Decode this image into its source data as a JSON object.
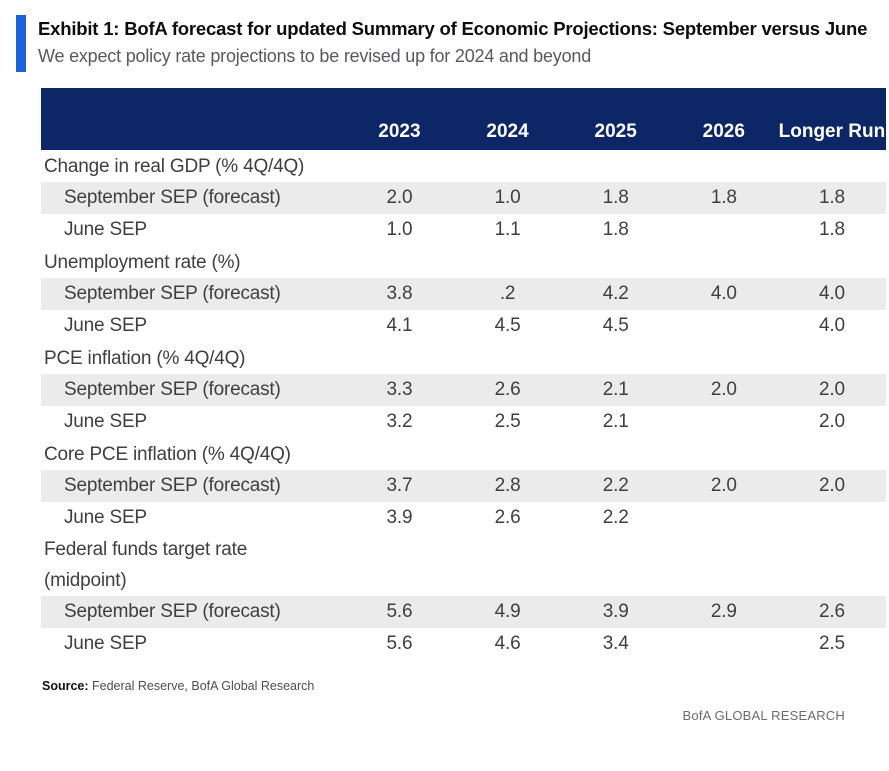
{
  "header": {
    "title": "Exhibit 1: BofA forecast for updated Summary of Economic Projections: September versus June",
    "subtitle": "We expect policy rate projections to be revised up for 2024 and beyond"
  },
  "chart_data": {
    "type": "table",
    "title": "Exhibit 1: BofA forecast for updated Summary of Economic Projections: September versus June",
    "subtitle": "We expect policy rate projections to be revised up for 2024 and beyond",
    "columns": [
      "",
      "2023",
      "2024",
      "2025",
      "2026",
      "Longer Run"
    ],
    "sections": [
      {
        "category": "Change in real GDP (% 4Q/4Q)",
        "rows": [
          {
            "label": "September SEP (forecast)",
            "values": [
              "2.0",
              "1.0",
              "1.8",
              "1.8",
              "1.8"
            ],
            "highlight": true
          },
          {
            "label": "June SEP",
            "values": [
              "1.0",
              "1.1",
              "1.8",
              "",
              "1.8"
            ],
            "highlight": false
          }
        ]
      },
      {
        "category": "Unemployment rate (%)",
        "rows": [
          {
            "label": "September SEP (forecast)",
            "values": [
              "3.8",
              ".2",
              "4.2",
              "4.0",
              "4.0"
            ],
            "highlight": true
          },
          {
            "label": "June SEP",
            "values": [
              "4.1",
              "4.5",
              "4.5",
              "",
              "4.0"
            ],
            "highlight": false
          }
        ]
      },
      {
        "category": "PCE inflation (% 4Q/4Q)",
        "rows": [
          {
            "label": "September SEP (forecast)",
            "values": [
              "3.3",
              "2.6",
              "2.1",
              "2.0",
              "2.0"
            ],
            "highlight": true
          },
          {
            "label": "June SEP",
            "values": [
              "3.2",
              "2.5",
              "2.1",
              "",
              "2.0"
            ],
            "highlight": false
          }
        ]
      },
      {
        "category": "Core PCE inflation (% 4Q/4Q)",
        "rows": [
          {
            "label": "September SEP (forecast)",
            "values": [
              "3.7",
              "2.8",
              "2.2",
              "2.0",
              "2.0"
            ],
            "highlight": true
          },
          {
            "label": "June SEP",
            "values": [
              "3.9",
              "2.6",
              "2.2",
              "",
              ""
            ],
            "highlight": false
          }
        ]
      },
      {
        "category": "Federal funds target rate\n(midpoint)",
        "rows": [
          {
            "label": "September SEP (forecast)",
            "values": [
              "5.6",
              "4.9",
              "3.9",
              "2.9",
              "2.6"
            ],
            "highlight": true
          },
          {
            "label": "June SEP",
            "values": [
              "5.6",
              "4.6",
              "3.4",
              "",
              "2.5"
            ],
            "highlight": false
          }
        ]
      }
    ]
  },
  "footer": {
    "source_label": "Source:",
    "source_text": " Federal Reserve, BofA Global Research",
    "brand": "BofA GLOBAL RESEARCH"
  },
  "colors": {
    "navy": "#0d2766",
    "accent": "#1b63d6",
    "band": "#ebebeb",
    "body-text": "#3f3f3f",
    "subtitle": "#58595b",
    "muted": "#6b6b6b"
  }
}
